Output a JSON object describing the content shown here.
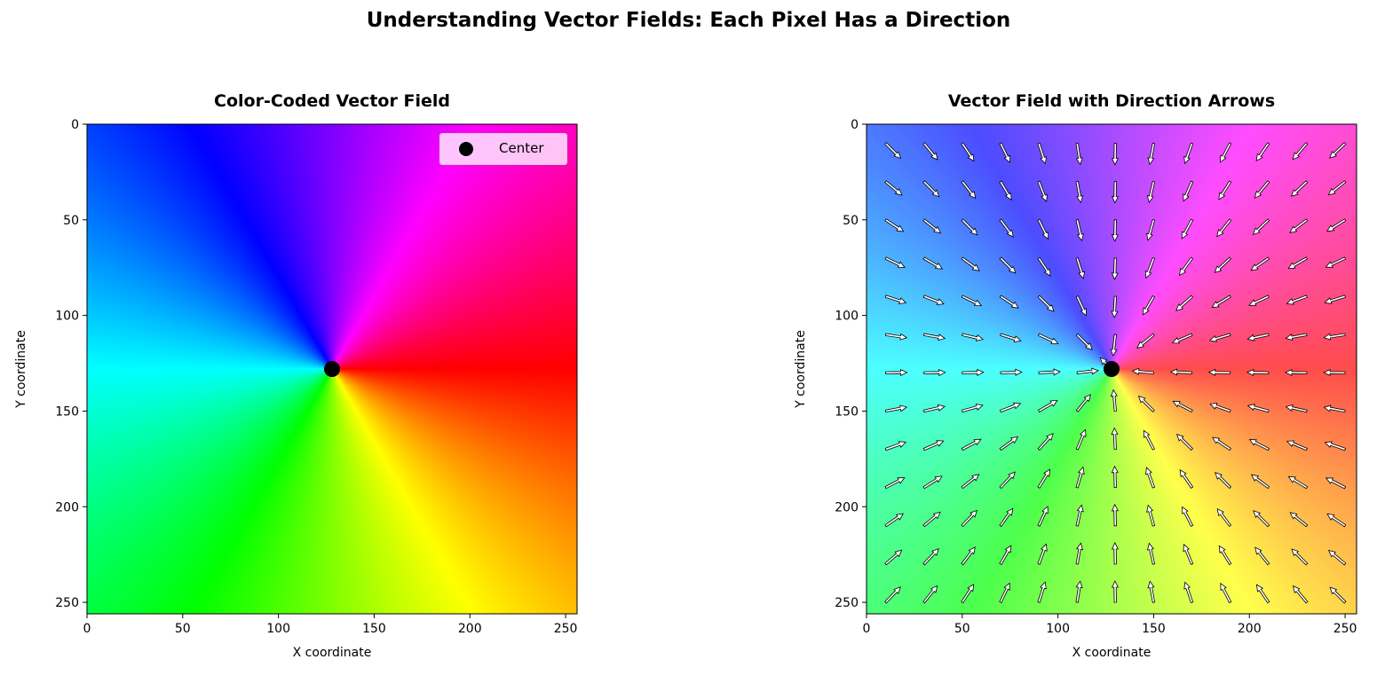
{
  "suptitle": "Understanding Vector Fields: Each Pixel Has a Direction",
  "chart_data": [
    {
      "type": "heatmap",
      "title": "Color-Coded Vector Field",
      "xlabel": "X coordinate",
      "ylabel": "Y coordinate",
      "xlim": [
        0,
        256
      ],
      "ylim": [
        256,
        0
      ],
      "xticks": [
        "0",
        "50",
        "100",
        "150",
        "200",
        "250"
      ],
      "yticks": [
        "0",
        "50",
        "100",
        "150",
        "200",
        "250"
      ],
      "color_encoding": "hue of direction angle from center",
      "center": {
        "x": 128,
        "y": 128
      },
      "legend": {
        "entries": [
          "Center"
        ],
        "placement": "upper-right"
      }
    },
    {
      "type": "heatmap",
      "title": "Vector Field with Direction Arrows",
      "xlabel": "X coordinate",
      "ylabel": "Y coordinate",
      "xlim": [
        0,
        256
      ],
      "ylim": [
        256,
        0
      ],
      "xticks": [
        "0",
        "50",
        "100",
        "150",
        "200",
        "250"
      ],
      "yticks": [
        "0",
        "50",
        "100",
        "150",
        "200",
        "250"
      ],
      "center": {
        "x": 128,
        "y": 128
      },
      "arrows": {
        "grid_x": [
          10,
          30,
          50,
          70,
          90,
          110,
          130,
          150,
          170,
          190,
          210,
          230,
          250
        ],
        "grid_y": [
          10,
          30,
          50,
          70,
          90,
          110,
          130,
          150,
          170,
          190,
          210,
          230,
          250
        ],
        "direction": "pointing toward center",
        "face_color": "#ffffff",
        "edge_color": "#000000"
      }
    }
  ],
  "legend": {
    "center_label": "Center"
  }
}
